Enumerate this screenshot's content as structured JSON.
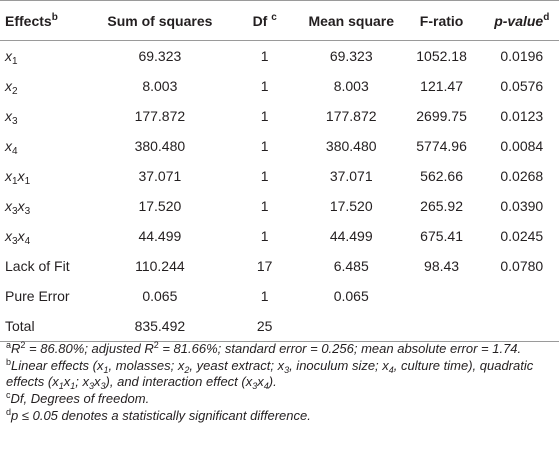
{
  "table": {
    "headers": {
      "effects": "Effects",
      "effects_sup": "b",
      "sum_of_squares": "Sum of squares",
      "df": "Df",
      "df_sup": "c",
      "mean_square": "Mean square",
      "f_ratio": "F-ratio",
      "p_value": "p-value",
      "p_value_sup": "d"
    },
    "rows": [
      {
        "sym": "x",
        "s1": "1",
        "sym2": "",
        "s2": "",
        "ss": "69.323",
        "df": "1",
        "ms": "69.323",
        "f": "1052.18",
        "p": "0.0196"
      },
      {
        "sym": "x",
        "s1": "2",
        "sym2": "",
        "s2": "",
        "ss": "8.003",
        "df": "1",
        "ms": "8.003",
        "f": "121.47",
        "p": "0.0576"
      },
      {
        "sym": "x",
        "s1": "3",
        "sym2": "",
        "s2": "",
        "ss": "177.872",
        "df": "1",
        "ms": "177.872",
        "f": "2699.75",
        "p": "0.0123"
      },
      {
        "sym": "x",
        "s1": "4",
        "sym2": "",
        "s2": "",
        "ss": "380.480",
        "df": "1",
        "ms": "380.480",
        "f": "5774.96",
        "p": "0.0084"
      },
      {
        "sym": "x",
        "s1": "1",
        "sym2": "x",
        "s2": "1",
        "ss": "37.071",
        "df": "1",
        "ms": "37.071",
        "f": "562.66",
        "p": "0.0268"
      },
      {
        "sym": "x",
        "s1": "3",
        "sym2": "x",
        "s2": "3",
        "ss": "17.520",
        "df": "1",
        "ms": "17.520",
        "f": "265.92",
        "p": "0.0390"
      },
      {
        "sym": "x",
        "s1": "3",
        "sym2": "x",
        "s2": "4",
        "ss": "44.499",
        "df": "1",
        "ms": "44.499",
        "f": "675.41",
        "p": "0.0245"
      }
    ],
    "lack_of_fit": {
      "label": "Lack of Fit",
      "ss": "110.244",
      "df": "17",
      "ms": "6.485",
      "f": "98.43",
      "p": "0.0780"
    },
    "pure_error": {
      "label": "Pure Error",
      "ss": "0.065",
      "df": "1",
      "ms": "0.065"
    },
    "total": {
      "label": "Total",
      "ss": "835.492",
      "df": "25"
    }
  },
  "footnotes": {
    "a": {
      "mark": "a",
      "r": "R",
      "r_sup": "2",
      "t1": " = 86.80%; adjusted ",
      "t2": " = 81.66%; standard error = 0.256; mean absolute error = 1.74."
    },
    "b": {
      "mark": "b",
      "t1": "Linear effects (",
      "t2": ", molasses; ",
      "t3": ", yeast extract; ",
      "t4": ", inoculum size; ",
      "t5": ", culture time), quadratic effects (",
      "t6": "; ",
      "t7": "), and interaction effect (",
      "t8": ")."
    },
    "c": {
      "mark": "c",
      "text": "Df, Degrees of freedom."
    },
    "d": {
      "mark": "d",
      "t1": "p",
      "t2": " ≤ 0.05 denotes a statistically significant difference."
    }
  }
}
